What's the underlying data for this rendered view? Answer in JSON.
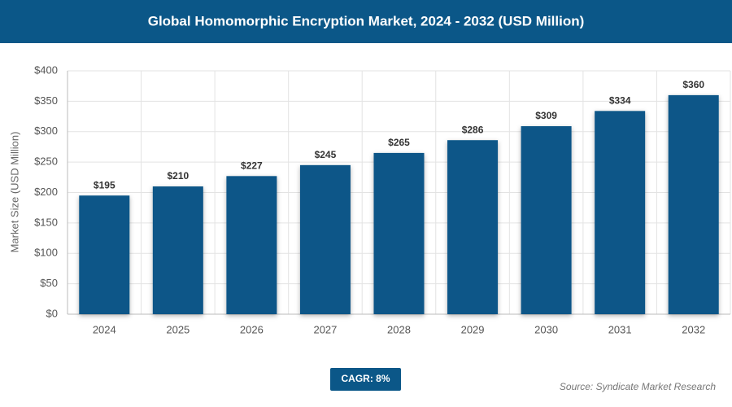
{
  "chart_data": {
    "type": "bar",
    "title": "Global Homomorphic Encryption Market, 2024 - 2032 (USD Million)",
    "y_label": "Market Size (USD Million)",
    "categories": [
      "2024",
      "2025",
      "2026",
      "2027",
      "2028",
      "2029",
      "2030",
      "2031",
      "2032"
    ],
    "values": [
      195,
      210,
      227,
      245,
      265,
      286,
      309,
      334,
      360
    ],
    "value_labels": [
      "$195",
      "$210",
      "$227",
      "$245",
      "$265",
      "$286",
      "$309",
      "$334",
      "$360"
    ],
    "color": "#0b5788",
    "ylim": [
      0,
      400
    ],
    "yticks": [
      {
        "value": 0,
        "label": "$0"
      },
      {
        "value": 50,
        "label": "$50"
      },
      {
        "value": 100,
        "label": "$100"
      },
      {
        "value": 150,
        "label": "$150"
      },
      {
        "value": 200,
        "label": "$200"
      },
      {
        "value": 250,
        "label": "$250"
      },
      {
        "value": 300,
        "label": "$300"
      },
      {
        "value": 350,
        "label": "$350"
      },
      {
        "value": 400,
        "label": "$400"
      }
    ],
    "grid": true,
    "annotation": "CAGR: 8%",
    "source": "Source: Syndicate Market Research"
  }
}
